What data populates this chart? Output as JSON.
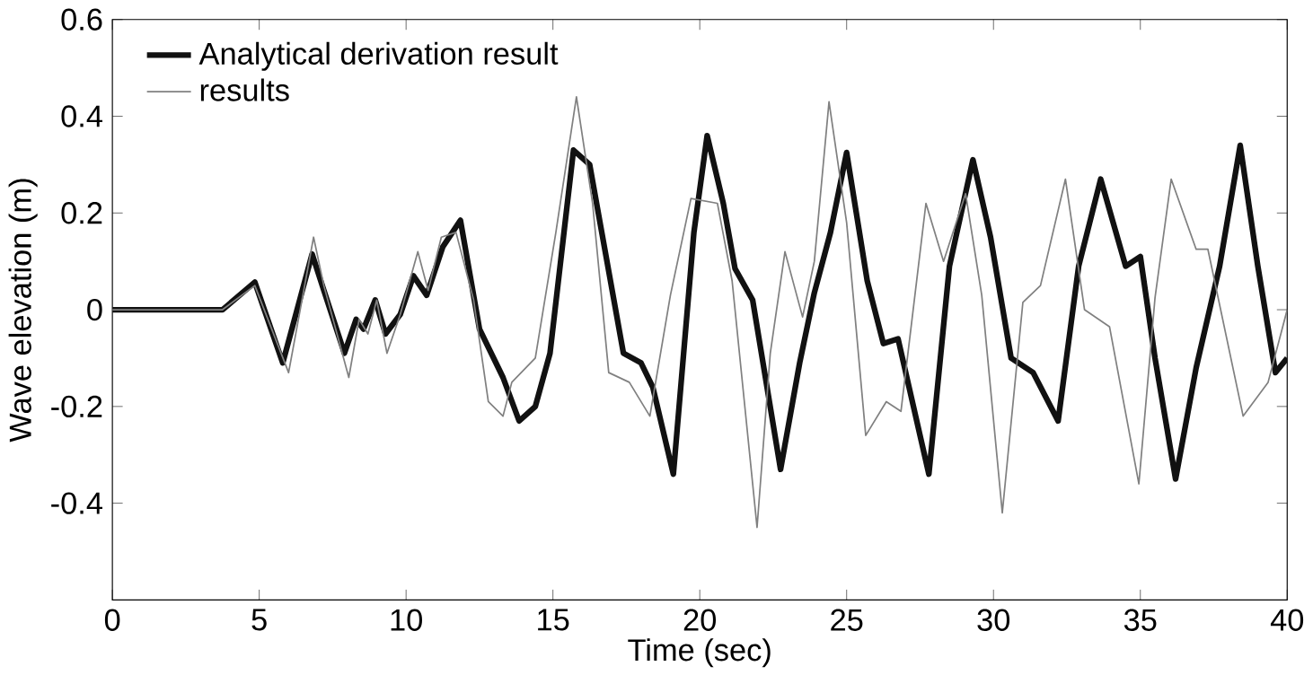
{
  "chart_data": {
    "type": "line",
    "xlabel": "Time (sec)",
    "ylabel": "Wave elevation (m)",
    "xlim": [
      0,
      40
    ],
    "xticks": [
      0,
      5,
      10,
      15,
      20,
      25,
      30,
      35,
      40
    ],
    "ylim": [
      -0.6,
      0.6
    ],
    "yticks": [
      -0.4,
      -0.2,
      0,
      0.2,
      0.4,
      0.6
    ],
    "legend": "top left",
    "grid": false,
    "marker": "none",
    "line_style": "solid",
    "series": [
      {
        "name": "Analytical derivation result",
        "color": "#111111",
        "x": [
          0,
          3.75,
          4.85,
          5.8,
          6.8,
          7.2,
          7.9,
          8.3,
          8.55,
          8.95,
          9.3,
          9.8,
          10.25,
          10.7,
          11.25,
          11.85,
          12.5,
          13.3,
          13.85,
          14.4,
          14.9,
          15.7,
          16.25,
          17.4,
          18.0,
          18.4,
          19.1,
          19.8,
          20.25,
          20.8,
          21.2,
          21.8,
          22.75,
          23.4,
          23.9,
          24.45,
          25.0,
          25.7,
          26.25,
          26.75,
          27.8,
          28.5,
          29.3,
          29.9,
          30.6,
          31.35,
          32.2,
          32.9,
          33.65,
          34.5,
          35.0,
          35.5,
          36.2,
          36.9,
          37.7,
          38.4,
          39.0,
          39.6,
          40
        ],
        "values": [
          0,
          0,
          0.057,
          -0.11,
          0.115,
          0.04,
          -0.09,
          -0.02,
          -0.04,
          0.02,
          -0.05,
          -0.01,
          0.07,
          0.03,
          0.13,
          0.185,
          -0.04,
          -0.14,
          -0.23,
          -0.2,
          -0.09,
          0.33,
          0.3,
          -0.09,
          -0.11,
          -0.16,
          -0.34,
          0.16,
          0.36,
          0.22,
          0.085,
          0.02,
          -0.33,
          -0.11,
          0.035,
          0.16,
          0.325,
          0.06,
          -0.07,
          -0.06,
          -0.34,
          0.09,
          0.31,
          0.15,
          -0.1,
          -0.13,
          -0.23,
          0.09,
          0.27,
          0.09,
          0.11,
          -0.1,
          -0.35,
          -0.12,
          0.09,
          0.34,
          0.09,
          -0.13,
          -0.1
        ]
      },
      {
        "name": "results",
        "color": "#808080",
        "x": [
          0,
          3.75,
          4.85,
          6.0,
          6.85,
          7.2,
          8.05,
          8.4,
          8.7,
          9.0,
          9.35,
          9.8,
          10.4,
          10.75,
          11.2,
          11.7,
          12.3,
          12.8,
          13.3,
          13.6,
          14.4,
          15.1,
          15.8,
          16.35,
          16.9,
          17.6,
          18.3,
          19.0,
          19.7,
          20.6,
          21.1,
          21.95,
          22.4,
          22.9,
          23.5,
          23.9,
          24.4,
          25.0,
          25.65,
          26.35,
          26.85,
          27.7,
          28.3,
          29.05,
          29.6,
          30.3,
          31.0,
          31.6,
          32.45,
          33.1,
          33.95,
          34.95,
          35.5,
          36.05,
          36.9,
          37.3,
          38.5,
          39.35,
          40
        ],
        "values": [
          0,
          0,
          0.05,
          -0.13,
          0.15,
          0.05,
          -0.14,
          -0.02,
          -0.05,
          0.02,
          -0.09,
          -0.01,
          0.12,
          0.04,
          0.15,
          0.16,
          0.02,
          -0.19,
          -0.22,
          -0.15,
          -0.1,
          0.16,
          0.44,
          0.22,
          -0.13,
          -0.15,
          -0.22,
          0.03,
          0.23,
          0.22,
          0.06,
          -0.45,
          -0.09,
          0.12,
          -0.015,
          0.1,
          0.43,
          0.18,
          -0.26,
          -0.19,
          -0.21,
          0.22,
          0.1,
          0.24,
          0.03,
          -0.42,
          0.015,
          0.05,
          0.27,
          0,
          -0.035,
          -0.36,
          0.025,
          0.27,
          0.125,
          0.125,
          -0.22,
          -0.15,
          0
        ]
      }
    ]
  }
}
